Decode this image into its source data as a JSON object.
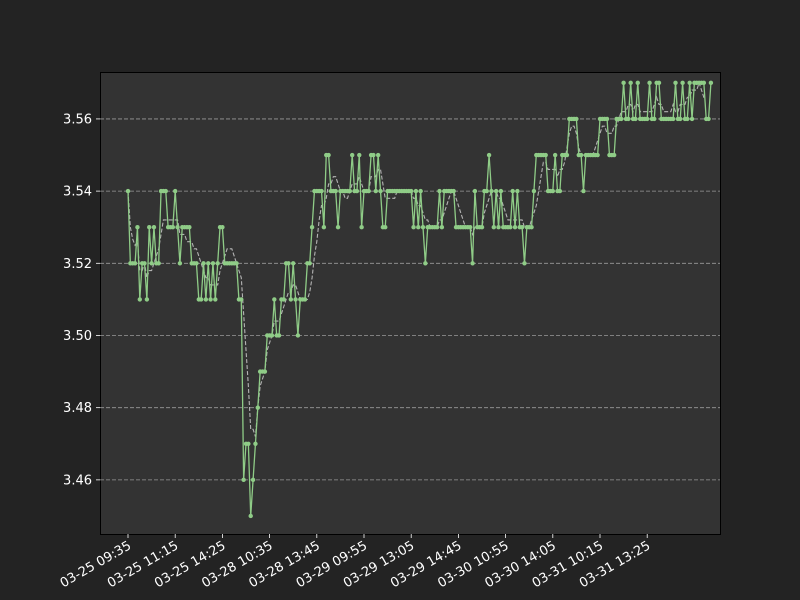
{
  "chart_data": {
    "type": "line",
    "title": "",
    "xlabel": "",
    "ylabel": "",
    "ylim": [
      3.445,
      3.573
    ],
    "grid": "y",
    "legend": "none",
    "colors": {
      "figure_bg": "#232323",
      "axes_bg": "#333333",
      "series": "#8fcc87",
      "moving_average": "#b4b4b4",
      "grid": "#9a9a9a",
      "text": "#ffffff"
    },
    "x_ticks": [
      "03-25 09:35",
      "03-25 11:15",
      "03-25 14:25",
      "03-28 10:35",
      "03-28 13:45",
      "03-29 09:55",
      "03-29 13:05",
      "03-29 14:45",
      "03-30 10:55",
      "03-30 14:05",
      "03-31 10:15",
      "03-31 13:25"
    ],
    "x_tick_interval": 20,
    "y_ticks": [
      3.46,
      3.48,
      3.5,
      3.52,
      3.54,
      3.56
    ],
    "y_tick_labels": [
      "3.46",
      "3.48",
      "3.50",
      "3.52",
      "3.54",
      "3.56"
    ],
    "series": [
      {
        "values": [
          3.54,
          3.52,
          3.52,
          3.52,
          3.53,
          3.51,
          3.52,
          3.52,
          3.51,
          3.53,
          3.52,
          3.53,
          3.52,
          3.52,
          3.54,
          3.54,
          3.54,
          3.53,
          3.53,
          3.53,
          3.54,
          3.53,
          3.52,
          3.53,
          3.53,
          3.53,
          3.53,
          3.52,
          3.52,
          3.52,
          3.51,
          3.51,
          3.52,
          3.51,
          3.52,
          3.51,
          3.52,
          3.51,
          3.52,
          3.53,
          3.53,
          3.52,
          3.52,
          3.52,
          3.52,
          3.52,
          3.52,
          3.51,
          3.51,
          3.46,
          3.47,
          3.47,
          3.45,
          3.46,
          3.47,
          3.48,
          3.49,
          3.49,
          3.49,
          3.5,
          3.5,
          3.5,
          3.51,
          3.5,
          3.5,
          3.51,
          3.51,
          3.52,
          3.52,
          3.51,
          3.52,
          3.51,
          3.5,
          3.51,
          3.51,
          3.51,
          3.52,
          3.52,
          3.53,
          3.54,
          3.54,
          3.54,
          3.54,
          3.53,
          3.55,
          3.55,
          3.54,
          3.54,
          3.54,
          3.53,
          3.54,
          3.54,
          3.54,
          3.54,
          3.54,
          3.55,
          3.54,
          3.54,
          3.55,
          3.53,
          3.54,
          3.54,
          3.54,
          3.55,
          3.55,
          3.54,
          3.55,
          3.54,
          3.53,
          3.53,
          3.54,
          3.54,
          3.54,
          3.54,
          3.54,
          3.54,
          3.54,
          3.54,
          3.54,
          3.54,
          3.54,
          3.53,
          3.54,
          3.53,
          3.54,
          3.53,
          3.52,
          3.53,
          3.53,
          3.53,
          3.53,
          3.53,
          3.54,
          3.53,
          3.54,
          3.54,
          3.54,
          3.54,
          3.54,
          3.53,
          3.53,
          3.53,
          3.53,
          3.53,
          3.53,
          3.53,
          3.52,
          3.54,
          3.53,
          3.53,
          3.53,
          3.54,
          3.54,
          3.55,
          3.54,
          3.53,
          3.54,
          3.53,
          3.54,
          3.53,
          3.53,
          3.53,
          3.53,
          3.54,
          3.53,
          3.54,
          3.53,
          3.53,
          3.52,
          3.53,
          3.53,
          3.53,
          3.54,
          3.55,
          3.55,
          3.55,
          3.55,
          3.55,
          3.54,
          3.54,
          3.54,
          3.55,
          3.54,
          3.54,
          3.55,
          3.55,
          3.55,
          3.56,
          3.56,
          3.56,
          3.56,
          3.55,
          3.55,
          3.54,
          3.55,
          3.55,
          3.55,
          3.55,
          3.55,
          3.55,
          3.56,
          3.56,
          3.56,
          3.56,
          3.55,
          3.55,
          3.55,
          3.56,
          3.56,
          3.56,
          3.57,
          3.56,
          3.56,
          3.57,
          3.56,
          3.56,
          3.57,
          3.56,
          3.56,
          3.56,
          3.56,
          3.57,
          3.56,
          3.56,
          3.57,
          3.57,
          3.56,
          3.56,
          3.56,
          3.56,
          3.56,
          3.56,
          3.57,
          3.56,
          3.56,
          3.57,
          3.56,
          3.56,
          3.57,
          3.56,
          3.57,
          3.57,
          3.57,
          3.57,
          3.57,
          3.56,
          3.56,
          3.57
        ]
      },
      {
        "values": [
          3.54,
          3.53,
          3.526667,
          3.525,
          3.526,
          3.518,
          3.518,
          3.52,
          3.516,
          3.518,
          3.518,
          3.52,
          3.522,
          3.524,
          3.528,
          3.532,
          3.532,
          3.532,
          3.532,
          3.532,
          3.532,
          3.532,
          3.528,
          3.528,
          3.528,
          3.526,
          3.526,
          3.526,
          3.524,
          3.524,
          3.522,
          3.52,
          3.518,
          3.516,
          3.516,
          3.514,
          3.514,
          3.514,
          3.514,
          3.518,
          3.52,
          3.522,
          3.524,
          3.524,
          3.524,
          3.522,
          3.52,
          3.518,
          3.516,
          3.506,
          3.496,
          3.486,
          3.474,
          3.474,
          3.472,
          3.48,
          3.486,
          3.488,
          3.49,
          3.496,
          3.498,
          3.5,
          3.504,
          3.504,
          3.504,
          3.506,
          3.508,
          3.51,
          3.512,
          3.512,
          3.514,
          3.514,
          3.512,
          3.51,
          3.51,
          3.51,
          3.51,
          3.512,
          3.516,
          3.522,
          3.526,
          3.532,
          3.536,
          3.536,
          3.538,
          3.542,
          3.542,
          3.544,
          3.544,
          3.542,
          3.54,
          3.54,
          3.538,
          3.538,
          3.54,
          3.542,
          3.542,
          3.542,
          3.544,
          3.542,
          3.54,
          3.54,
          3.54,
          3.544,
          3.544,
          3.544,
          3.546,
          3.546,
          3.542,
          3.538,
          3.538,
          3.538,
          3.538,
          3.538,
          3.54,
          3.54,
          3.54,
          3.54,
          3.54,
          3.54,
          3.54,
          3.538,
          3.538,
          3.536,
          3.536,
          3.534,
          3.532,
          3.532,
          3.53,
          3.53,
          3.53,
          3.53,
          3.532,
          3.532,
          3.534,
          3.536,
          3.538,
          3.54,
          3.54,
          3.538,
          3.536,
          3.534,
          3.532,
          3.53,
          3.53,
          3.53,
          3.528,
          3.53,
          3.53,
          3.53,
          3.53,
          3.534,
          3.536,
          3.538,
          3.54,
          3.54,
          3.54,
          3.538,
          3.538,
          3.536,
          3.534,
          3.532,
          3.532,
          3.532,
          3.532,
          3.532,
          3.532,
          3.532,
          3.53,
          3.53,
          3.53,
          3.532,
          3.534,
          3.536,
          3.54,
          3.544,
          3.548,
          3.548,
          3.546,
          3.546,
          3.546,
          3.546,
          3.544,
          3.546,
          3.546,
          3.548,
          3.552,
          3.556,
          3.558,
          3.558,
          3.556,
          3.552,
          3.55,
          3.55,
          3.55,
          3.55,
          3.55,
          3.55,
          3.552,
          3.554,
          3.556,
          3.558,
          3.558,
          3.556,
          3.556,
          3.556,
          3.558,
          3.558,
          3.56,
          3.562,
          3.562,
          3.562,
          3.564,
          3.564,
          3.562,
          3.564,
          3.564,
          3.562,
          3.562,
          3.562,
          3.562,
          3.562,
          3.562,
          3.564,
          3.566,
          3.564,
          3.564,
          3.562,
          3.562,
          3.562,
          3.562,
          3.564,
          3.562,
          3.562,
          3.564,
          3.564,
          3.564,
          3.566,
          3.566,
          3.568,
          3.568,
          3.568,
          3.57,
          3.568,
          3.566,
          3.566
        ]
      }
    ]
  }
}
